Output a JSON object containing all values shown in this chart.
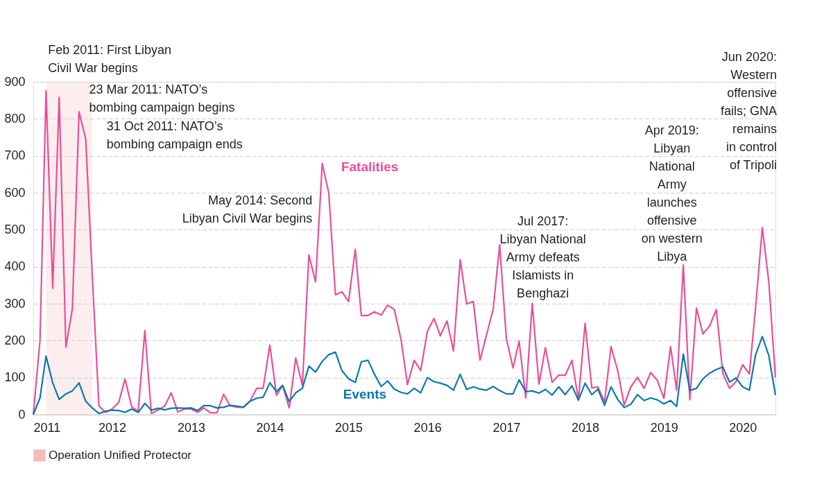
{
  "chart_data": {
    "type": "line",
    "x": [
      "2011-01",
      "2011-02",
      "2011-03",
      "2011-04",
      "2011-05",
      "2011-06",
      "2011-07",
      "2011-08",
      "2011-09",
      "2011-10",
      "2011-11",
      "2011-12",
      "2012-01",
      "2012-02",
      "2012-03",
      "2012-04",
      "2012-05",
      "2012-06",
      "2012-07",
      "2012-08",
      "2012-09",
      "2012-10",
      "2012-11",
      "2012-12",
      "2013-01",
      "2013-02",
      "2013-03",
      "2013-04",
      "2013-05",
      "2013-06",
      "2013-07",
      "2013-08",
      "2013-09",
      "2013-10",
      "2013-11",
      "2013-12",
      "2014-01",
      "2014-02",
      "2014-03",
      "2014-04",
      "2014-05",
      "2014-06",
      "2014-07",
      "2014-08",
      "2014-09",
      "2014-10",
      "2014-11",
      "2014-12",
      "2015-01",
      "2015-02",
      "2015-03",
      "2015-04",
      "2015-05",
      "2015-06",
      "2015-07",
      "2015-08",
      "2015-09",
      "2015-10",
      "2015-11",
      "2015-12",
      "2016-01",
      "2016-02",
      "2016-03",
      "2016-04",
      "2016-05",
      "2016-06",
      "2016-07",
      "2016-08",
      "2016-09",
      "2016-10",
      "2016-11",
      "2016-12",
      "2017-01",
      "2017-02",
      "2017-03",
      "2017-04",
      "2017-05",
      "2017-06",
      "2017-07",
      "2017-08",
      "2017-09",
      "2017-10",
      "2017-11",
      "2017-12",
      "2018-01",
      "2018-02",
      "2018-03",
      "2018-04",
      "2018-05",
      "2018-06",
      "2018-07",
      "2018-08",
      "2018-09",
      "2018-10",
      "2018-11",
      "2018-12",
      "2019-01",
      "2019-02",
      "2019-03",
      "2019-04",
      "2019-05",
      "2019-06",
      "2019-07",
      "2019-08",
      "2019-09",
      "2019-10",
      "2019-11",
      "2019-12",
      "2020-01",
      "2020-02",
      "2020-03",
      "2020-04",
      "2020-05",
      "2020-06"
    ],
    "series": [
      {
        "name": "Fatalities",
        "color": "#e84f98",
        "values": [
          0,
          200,
          876,
          342,
          858,
          182,
          286,
          819,
          745,
          380,
          24,
          6,
          15,
          33,
          96,
          21,
          9,
          227,
          3,
          12,
          23,
          59,
          7,
          15,
          15,
          6,
          18,
          5,
          5,
          55,
          24,
          20,
          20,
          36,
          71,
          71,
          188,
          52,
          79,
          18,
          153,
          79,
          432,
          359,
          679,
          600,
          324,
          332,
          306,
          447,
          268,
          268,
          278,
          269,
          296,
          284,
          203,
          81,
          147,
          119,
          225,
          260,
          213,
          253,
          172,
          419,
          299,
          306,
          147,
          215,
          285,
          459,
          206,
          126,
          199,
          45,
          301,
          82,
          181,
          87,
          107,
          106,
          147,
          40,
          247,
          72,
          75,
          34,
          184,
          119,
          26,
          75,
          101,
          71,
          114,
          93,
          44,
          184,
          66,
          405,
          40,
          288,
          218,
          240,
          284,
          112,
          71,
          89,
          135,
          110,
          290,
          506,
          360,
          100
        ]
      },
      {
        "name": "Events",
        "color": "#0a78ad",
        "values": [
          0,
          45,
          158,
          86,
          41,
          56,
          64,
          86,
          36,
          18,
          3,
          9,
          12,
          11,
          6,
          15,
          6,
          30,
          12,
          17,
          13,
          17,
          18,
          17,
          18,
          11,
          24,
          24,
          18,
          20,
          25,
          23,
          20,
          36,
          44,
          47,
          86,
          62,
          79,
          35,
          59,
          71,
          131,
          115,
          144,
          162,
          169,
          119,
          97,
          87,
          143,
          147,
          109,
          76,
          91,
          69,
          60,
          56,
          71,
          59,
          100,
          89,
          85,
          79,
          66,
          109,
          68,
          75,
          69,
          66,
          76,
          65,
          56,
          56,
          94,
          62,
          64,
          58,
          68,
          53,
          75,
          54,
          78,
          39,
          85,
          54,
          69,
          25,
          75,
          41,
          19,
          28,
          54,
          38,
          45,
          40,
          29,
          38,
          22,
          164,
          65,
          71,
          97,
          112,
          122,
          129,
          88,
          99,
          75,
          66,
          162,
          211,
          160,
          53
        ]
      }
    ],
    "xlim": [
      "2011-01",
      "2020-06"
    ],
    "xticks": [
      "2011",
      "2012",
      "2013",
      "2014",
      "2015",
      "2016",
      "2017",
      "2018",
      "2019",
      "2020"
    ],
    "ylim": [
      0,
      900
    ],
    "yticks": [
      0,
      100,
      200,
      300,
      400,
      500,
      600,
      700,
      800,
      900
    ],
    "grid": "y",
    "legend": "bottom left",
    "marker": "none",
    "line_style": "solid",
    "bands": [
      {
        "axis": "x",
        "from": "2011-03",
        "to": "2011-10",
        "label": "Operation Unified Protector",
        "color": "#f2bcbc"
      }
    ],
    "annotations": [
      "Feb 2011: First Libyan\nCivil War begins",
      "23 Mar 2011: NATO’s\nbombing campaign begins",
      "31 Oct 2011: NATO’s\nbombing campaign ends",
      "May 2014: Second\nLibyan Civil War begins",
      "Jul 2017:\nLibyan National\nArmy defeats\nIslamists in\nBenghazi",
      "Apr 2019:\nLibyan\nNational\nArmy\nlaunches\noffensive\non western\nLibya",
      "Jun 2020:\nWestern\noffensive\nfails; GNA\nremains\nin control\nof Tripoli"
    ]
  }
}
